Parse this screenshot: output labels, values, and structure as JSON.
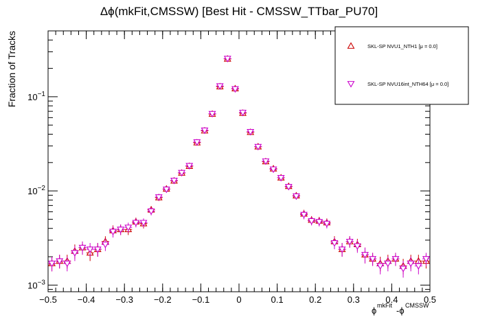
{
  "chart_data": {
    "type": "scatter",
    "title": "Δϕ(mkFit,CMSSW) [Best Hit - CMSSW_TTbar_PU70]",
    "xlabel": "ϕ^mkFit-ϕ^CMSSW",
    "ylabel": "Fraction of Tracks",
    "xlim": [
      -0.5,
      0.5
    ],
    "ylim": [
      0.00085,
      0.5
    ],
    "yscale": "log",
    "x_ticks": [
      -0.5,
      -0.4,
      -0.3,
      -0.2,
      -0.1,
      0,
      0.1,
      0.2,
      0.3,
      0.4,
      0.5
    ],
    "x_tick_labels": [
      "−0.5",
      "−0.4",
      "−0.3",
      "−0.2",
      "−0.1",
      "0",
      "0.1",
      "0.2",
      "0.3",
      "0.4",
      "0.5"
    ],
    "y_ticks": [
      0.001,
      0.01,
      0.1
    ],
    "y_tick_labels": [
      "10^-3",
      "10^-2",
      "10^-1"
    ],
    "legend_position": "top-right",
    "x": [
      -0.49,
      -0.47,
      -0.45,
      -0.43,
      -0.41,
      -0.39,
      -0.37,
      -0.35,
      -0.33,
      -0.31,
      -0.29,
      -0.27,
      -0.25,
      -0.23,
      -0.21,
      -0.19,
      -0.17,
      -0.15,
      -0.13,
      -0.11,
      -0.09,
      -0.07,
      -0.05,
      -0.03,
      -0.01,
      0.01,
      0.03,
      0.05,
      0.07,
      0.09,
      0.11,
      0.13,
      0.15,
      0.17,
      0.19,
      0.21,
      0.23,
      0.25,
      0.27,
      0.29,
      0.31,
      0.33,
      0.35,
      0.37,
      0.39,
      0.41,
      0.43,
      0.45,
      0.47,
      0.49
    ],
    "series": [
      {
        "name": "SKL-SP NVU1_NTH1 [μ =  0.0]",
        "marker": "triangle-up",
        "color": "#cc0000",
        "values": [
          0.0017,
          0.0018,
          0.0018,
          0.0023,
          0.0025,
          0.0022,
          0.0024,
          0.0029,
          0.0038,
          0.0039,
          0.0039,
          0.0047,
          0.0045,
          0.0063,
          0.0085,
          0.0105,
          0.0128,
          0.0155,
          0.0183,
          0.0325,
          0.0435,
          0.0655,
          0.128,
          0.252,
          0.122,
          0.067,
          0.042,
          0.0295,
          0.0205,
          0.0172,
          0.0138,
          0.0112,
          0.0089,
          0.0057,
          0.0049,
          0.0048,
          0.0046,
          0.0029,
          0.0024,
          0.0029,
          0.0027,
          0.0021,
          0.0019,
          0.0017,
          0.0018,
          0.0019,
          0.0016,
          0.0018,
          0.0018,
          0.0018
        ],
        "errors": [
          0.0003,
          0.0003,
          0.0003,
          0.0004,
          0.0004,
          0.0004,
          0.0004,
          0.0004,
          0.0005,
          0.0005,
          0.0005,
          0.0005,
          0.0005,
          0.0006,
          0.0007,
          0.0008,
          0.0009,
          0.001,
          0.001,
          0.0014,
          0.0017,
          0.002,
          0.003,
          0.004,
          0.003,
          0.002,
          0.0016,
          0.0013,
          0.0011,
          0.001,
          0.0009,
          0.0008,
          0.0007,
          0.0006,
          0.0005,
          0.0005,
          0.0005,
          0.0004,
          0.0004,
          0.0004,
          0.0004,
          0.0004,
          0.0003,
          0.0003,
          0.0003,
          0.0003,
          0.0003,
          0.0003,
          0.0003,
          0.0003
        ]
      },
      {
        "name": "SKL-SP NVU16int_NTH64 [μ =  0.0]",
        "marker": "triangle-down",
        "color": "#cc00cc",
        "values": [
          0.0017,
          0.0018,
          0.0017,
          0.0022,
          0.0025,
          0.0024,
          0.0024,
          0.0027,
          0.0037,
          0.0039,
          0.0041,
          0.0046,
          0.0046,
          0.0061,
          0.0086,
          0.0104,
          0.0129,
          0.0156,
          0.0185,
          0.033,
          0.044,
          0.066,
          0.13,
          0.254,
          0.121,
          0.068,
          0.0425,
          0.0295,
          0.0207,
          0.017,
          0.0138,
          0.0111,
          0.0088,
          0.0056,
          0.0048,
          0.0047,
          0.0045,
          0.0028,
          0.0024,
          0.0029,
          0.0026,
          0.0021,
          0.0019,
          0.0016,
          0.0017,
          0.0019,
          0.0015,
          0.0017,
          0.0016,
          0.0019
        ],
        "errors": [
          0.0003,
          0.0003,
          0.0003,
          0.0004,
          0.0004,
          0.0004,
          0.0004,
          0.0004,
          0.0005,
          0.0005,
          0.0005,
          0.0005,
          0.0005,
          0.0006,
          0.0007,
          0.0008,
          0.0009,
          0.001,
          0.001,
          0.0014,
          0.0017,
          0.002,
          0.003,
          0.004,
          0.003,
          0.002,
          0.0016,
          0.0013,
          0.0011,
          0.001,
          0.0009,
          0.0008,
          0.0007,
          0.0006,
          0.0005,
          0.0005,
          0.0005,
          0.0004,
          0.0004,
          0.0004,
          0.0004,
          0.0004,
          0.0003,
          0.0003,
          0.0003,
          0.0003,
          0.0003,
          0.0003,
          0.0003,
          0.0003
        ]
      }
    ]
  }
}
